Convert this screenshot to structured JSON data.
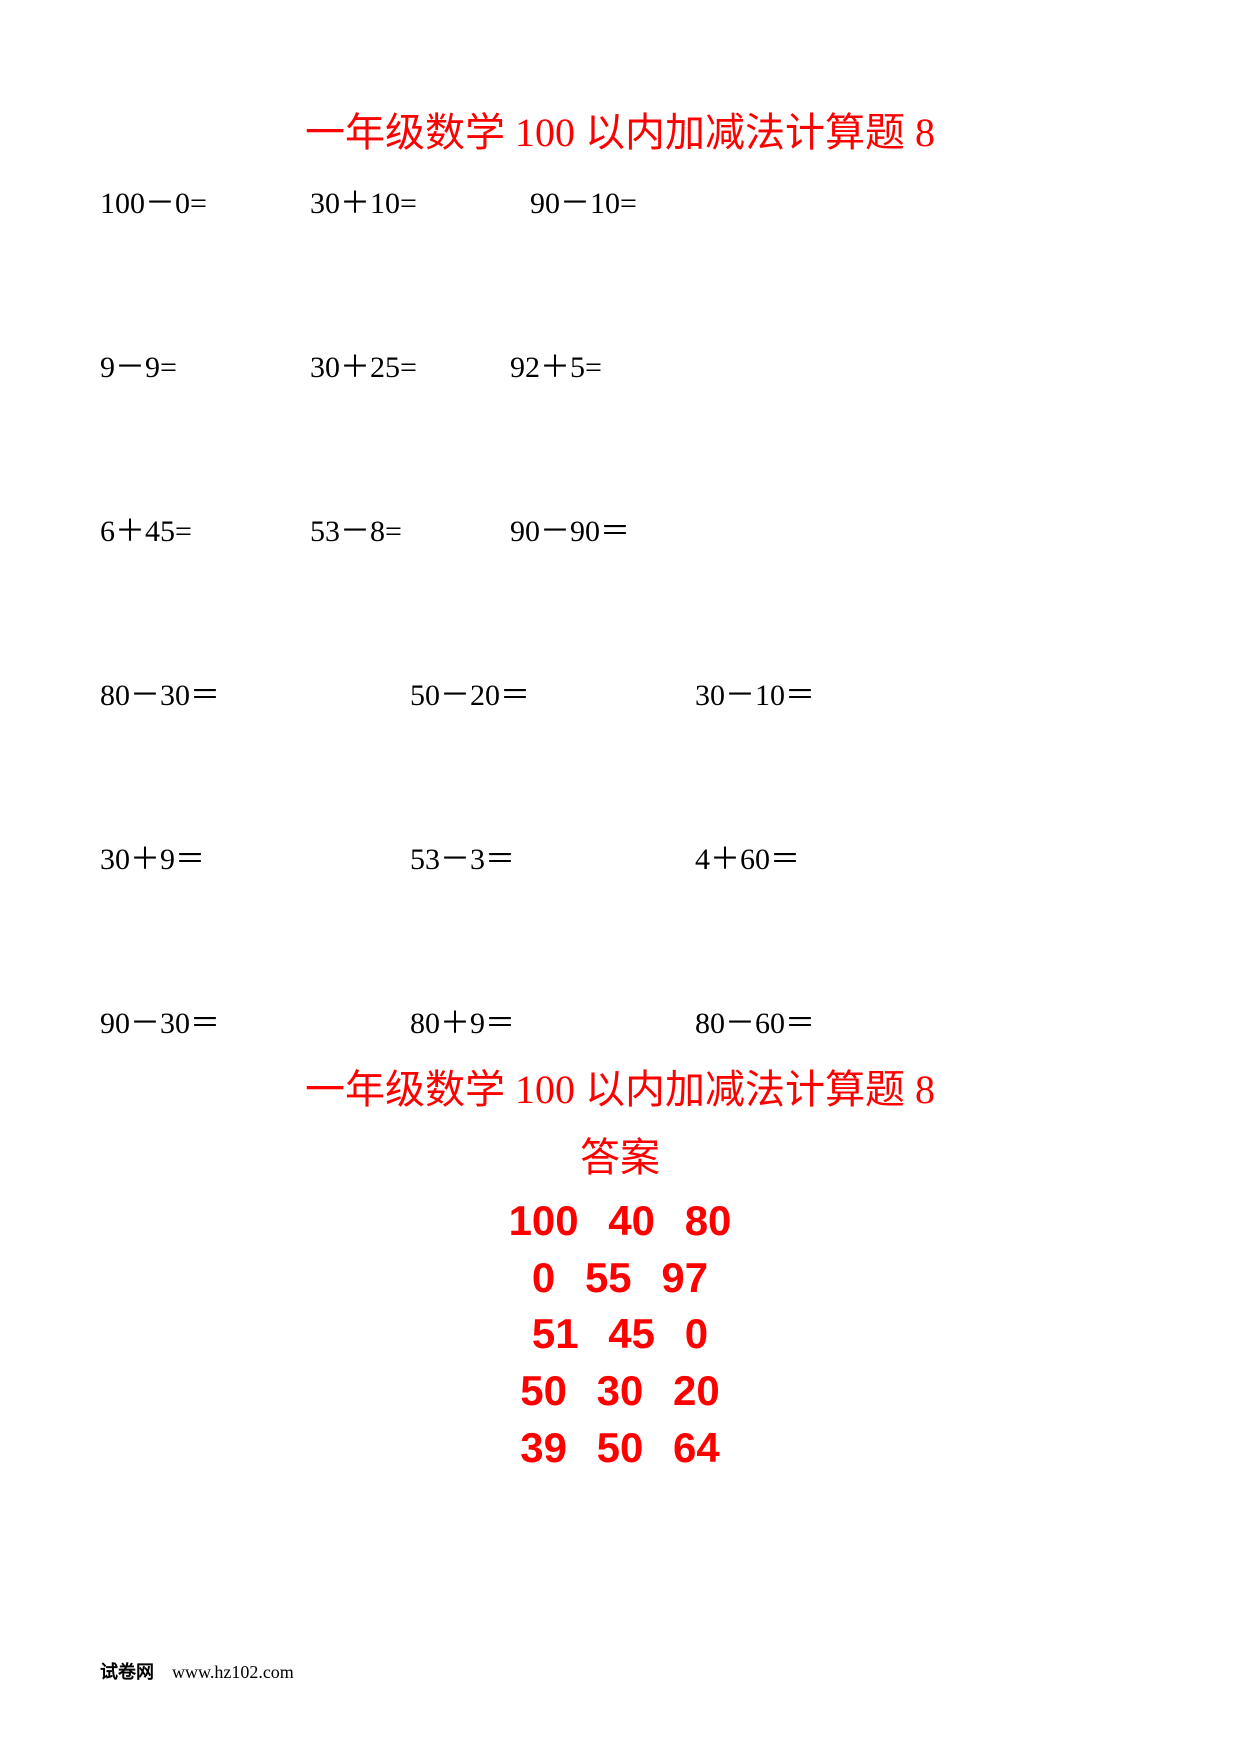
{
  "title": "一年级数学 100 以内加减法计算题 8",
  "problems": {
    "row1": [
      "100－0=",
      "30＋10=",
      "90－10="
    ],
    "row2": [
      "9－9=",
      "30＋25=",
      "92＋5="
    ],
    "row3": [
      "6＋45=",
      "53－8=",
      "90－90＝"
    ],
    "row4": [
      "80－30＝",
      "50－20＝",
      "30－10＝"
    ],
    "row5": [
      "30＋9＝",
      "53－3＝",
      "4＋60＝"
    ],
    "row6": [
      "90－30＝",
      "80＋9＝",
      "80－60＝"
    ]
  },
  "answer_title": "一年级数学 100 以内加减法计算题 8",
  "answer_subtitle": "答案",
  "answers": {
    "row1": "100  40  80",
    "row2": "0  55  97",
    "row3": "51  45  0",
    "row4": "50  30  20",
    "row5": "39  50  64"
  },
  "footer": {
    "label": "试卷网",
    "url": "www.hz102.com"
  },
  "colors": {
    "title": "#ff0000",
    "text": "#000000",
    "answer": "#ff0000",
    "background": "#ffffff"
  },
  "typography": {
    "title_fontsize": 40,
    "problem_fontsize": 30,
    "answer_fontsize": 42,
    "footer_fontsize": 18
  }
}
